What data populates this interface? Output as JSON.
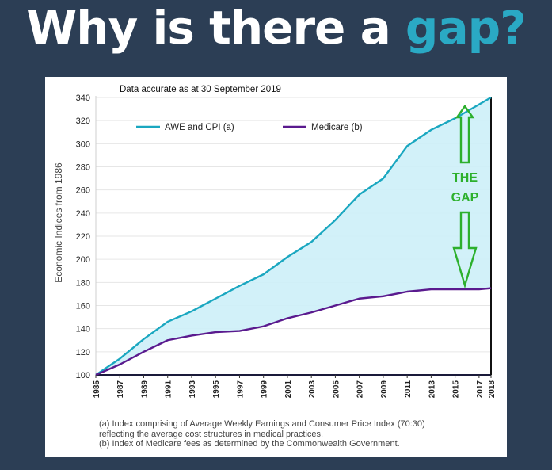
{
  "headline": {
    "main": "Why is there a ",
    "accent": "gap?"
  },
  "colors": {
    "background": "#2c3e55",
    "accent_text": "#2aa9c4",
    "awe": "#1aa7c0",
    "medicare": "#5a1a8e",
    "gap_fill": "#cdf0f8",
    "gap_text": "#2db02d"
  },
  "chart_data": {
    "type": "line",
    "title": "Data accurate as at 30 September 2019",
    "ylabel": "Economic Indices from 1986",
    "xlabel": "",
    "ylim": [
      100,
      340
    ],
    "yticks": [
      100,
      120,
      140,
      160,
      180,
      200,
      220,
      240,
      260,
      280,
      300,
      320,
      340
    ],
    "x": [
      1985,
      1987,
      1989,
      1991,
      1993,
      1995,
      1997,
      1999,
      2001,
      2003,
      2005,
      2007,
      2009,
      2011,
      2013,
      2015,
      2017,
      2018
    ],
    "xtick_labels": [
      "1985",
      "1987",
      "1989",
      "1991",
      "1993",
      "1995",
      "1997",
      "1999",
      "2001",
      "2003",
      "2005",
      "2007",
      "2009",
      "2011",
      "2013",
      "2015",
      "2017",
      "2018"
    ],
    "series": [
      {
        "name": "AWE and CPI (a)",
        "color": "#1aa7c0",
        "values": [
          100,
          114,
          131,
          146,
          155,
          166,
          177,
          187,
          202,
          215,
          234,
          256,
          270,
          298,
          312,
          322,
          334,
          340
        ]
      },
      {
        "name": "Medicare (b)",
        "color": "#5a1a8e",
        "values": [
          100,
          109,
          120,
          130,
          134,
          137,
          138,
          142,
          149,
          154,
          160,
          166,
          168,
          172,
          174,
          174,
          174,
          175
        ]
      }
    ],
    "legend_position": "top",
    "annotation": {
      "line1": "THE",
      "line2": "GAP"
    }
  },
  "footnotes": {
    "a1": "(a) Index comprising of Average Weekly Earnings and Consumer Price Index (70:30)",
    "a2": "reflecting the average cost structures in medical practices.",
    "b": "(b) Index of Medicare fees as determined by the Commonwealth Government."
  }
}
